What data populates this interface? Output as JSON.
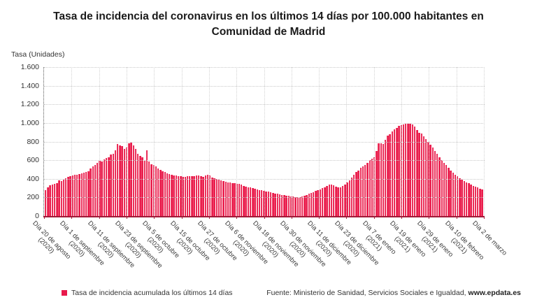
{
  "title": "Tasa de incidencia del coronavirus en los últimos 14 días por 100.000 habitantes en Comunidad de Madrid",
  "legend": {
    "label": "Tasa de incidencia acumulada los últimos 14 días",
    "marker_color": "#e8194b"
  },
  "source": {
    "text": "Fuente: Ministerio de Sanidad, Servicios Sociales e Igualdad, ",
    "brand": "www.epdata.es"
  },
  "colors": {
    "bar": "#e8194b",
    "bar_highlight": "#f4607b",
    "axis_line": "#a01a38",
    "grid": "#cccccc",
    "title_text": "#1a1a1a",
    "body_text": "#333333"
  },
  "chart_data": {
    "type": "bar",
    "title": "Tasa de incidencia del coronavirus en los últimos 14 días por 100.000 habitantes en Comunidad de Madrid",
    "xlabel": "",
    "ylabel": "Tasa (Unidades)",
    "ylim": [
      0,
      1600
    ],
    "grid": true,
    "legend_position": "bottom-left",
    "y_tick_step": 200,
    "y_tick_labels": [
      "0",
      "200",
      "400",
      "600",
      "800",
      "1.000",
      "1.200",
      "1.400",
      "1.600"
    ],
    "x_tick_labels": [
      {
        "date": "Día 20 de agosto",
        "year": "(2020)"
      },
      {
        "date": "Día 1 de septiembre",
        "year": "(2020)"
      },
      {
        "date": "Día 11 de septiembre",
        "year": "(2020)"
      },
      {
        "date": "Día 23 de septiembre",
        "year": "(2020)"
      },
      {
        "date": "Día 5 de octubre",
        "year": "(2020)"
      },
      {
        "date": "Día 15 de octubre",
        "year": "(2020)"
      },
      {
        "date": "Día 27 de octubre",
        "year": "(2020)"
      },
      {
        "date": "Día 6 de noviembre",
        "year": "(2020)"
      },
      {
        "date": "Día 18 de noviembre",
        "year": "(2020)"
      },
      {
        "date": "Día 30 de noviembre",
        "year": "(2020)"
      },
      {
        "date": "Día 11 de diciembre",
        "year": "(2020)"
      },
      {
        "date": "Día 23 de diciembre",
        "year": "(2020)"
      },
      {
        "date": "Día 7 de enero",
        "year": "(2021)"
      },
      {
        "date": "Día 19 de enero",
        "year": "(2021)"
      },
      {
        "date": "Día 29 de enero",
        "year": "(2021)"
      },
      {
        "date": "Día 10 de febrero",
        "year": "(2021)"
      },
      {
        "date": "Día 2 de marzo",
        "year": ""
      }
    ],
    "series": [
      {
        "name": "Tasa de incidencia acumulada los últimos 14 días",
        "color": "#e8194b",
        "values": [
          282,
          307,
          330,
          337,
          345,
          357,
          380,
          375,
          390,
          408,
          420,
          425,
          433,
          440,
          445,
          450,
          458,
          465,
          470,
          483,
          508,
          533,
          546,
          571,
          596,
          584,
          609,
          621,
          634,
          660,
          672,
          709,
          772,
          760,
          752,
          722,
          734,
          785,
          792,
          760,
          722,
          672,
          646,
          634,
          596,
          709,
          584,
          558,
          546,
          533,
          508,
          496,
          483,
          470,
          458,
          450,
          445,
          438,
          433,
          428,
          425,
          420,
          422,
          425,
          428,
          430,
          432,
          433,
          433,
          428,
          423,
          433,
          440,
          435,
          415,
          405,
          395,
          388,
          382,
          375,
          368,
          362,
          358,
          355,
          350,
          347,
          344,
          335,
          325,
          314,
          310,
          306,
          300,
          294,
          288,
          282,
          276,
          271,
          266,
          260,
          254,
          249,
          243,
          237,
          231,
          227,
          224,
          221,
          218,
          214,
          209,
          206,
          204,
          205,
          210,
          218,
          228,
          238,
          248,
          258,
          268,
          278,
          285,
          300,
          310,
          320,
          335,
          340,
          330,
          315,
          307,
          310,
          322,
          340,
          360,
          382,
          410,
          440,
          470,
          490,
          515,
          535,
          550,
          575,
          600,
          615,
          634,
          697,
          785,
          780,
          772,
          820,
          866,
          880,
          911,
          930,
          950,
          970,
          980,
          985,
          990,
          993,
          990,
          986,
          961,
          928,
          898,
          886,
          853,
          828,
          797,
          767,
          735,
          702,
          672,
          634,
          601,
          571,
          546,
          516,
          491,
          465,
          445,
          425,
          408,
          390,
          375,
          362,
          350,
          338,
          326,
          315,
          305,
          295,
          285
        ]
      }
    ]
  }
}
